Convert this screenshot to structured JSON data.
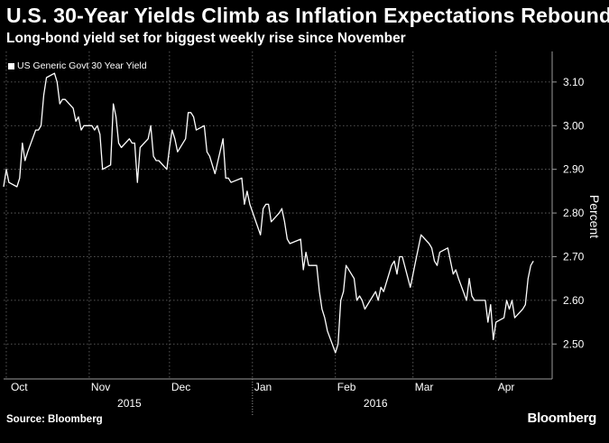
{
  "header": {
    "title": "U.S. 30-Year Yields Climb as Inflation Expectations Rebound",
    "subtitle": "Long-bond yield set for biggest weekly rise since November"
  },
  "footer": {
    "source": "Source: Bloomberg",
    "brand": "Bloomberg"
  },
  "chart_data": {
    "type": "line",
    "ylabel": "Percent",
    "ylim": [
      2.42,
      3.17
    ],
    "yticks": [
      2.5,
      2.6,
      2.7,
      2.8,
      2.9,
      3.0,
      3.1
    ],
    "ytick_labels": [
      "2.50",
      "2.60",
      "2.70",
      "2.80",
      "2.90",
      "3.00",
      "3.10"
    ],
    "y_axis_position": "right",
    "grid": true,
    "legend_position": "top-left",
    "xlim": [
      "2015-09-30",
      "2016-04-22"
    ],
    "month_ticks": [
      {
        "label": "Oct",
        "date": "2015-10-01"
      },
      {
        "label": "Nov",
        "date": "2015-11-01"
      },
      {
        "label": "Dec",
        "date": "2015-12-01"
      },
      {
        "label": "Jan",
        "date": "2016-01-01"
      },
      {
        "label": "Feb",
        "date": "2016-02-01"
      },
      {
        "label": "Mar",
        "date": "2016-03-01"
      },
      {
        "label": "Apr",
        "date": "2016-04-01"
      }
    ],
    "year_labels": [
      {
        "label": "2015",
        "date": "2015-11-16"
      },
      {
        "label": "2016",
        "date": "2016-02-16"
      }
    ],
    "year_separator": "2016-01-01",
    "series": [
      {
        "name": "US Generic Govt 30 Year Yield",
        "color": "#ffffff",
        "points": [
          [
            "2015-09-30",
            2.86
          ],
          [
            "2015-10-01",
            2.9
          ],
          [
            "2015-10-02",
            2.87
          ],
          [
            "2015-10-05",
            2.86
          ],
          [
            "2015-10-06",
            2.88
          ],
          [
            "2015-10-07",
            2.96
          ],
          [
            "2015-10-08",
            2.92
          ],
          [
            "2015-10-09",
            2.94
          ],
          [
            "2015-10-12",
            2.99
          ],
          [
            "2015-10-13",
            2.99
          ],
          [
            "2015-10-14",
            3.0
          ],
          [
            "2015-10-15",
            3.07
          ],
          [
            "2015-10-16",
            3.11
          ],
          [
            "2015-10-19",
            3.12
          ],
          [
            "2015-10-20",
            3.1
          ],
          [
            "2015-10-21",
            3.05
          ],
          [
            "2015-10-22",
            3.06
          ],
          [
            "2015-10-23",
            3.06
          ],
          [
            "2015-10-26",
            3.04
          ],
          [
            "2015-10-27",
            3.01
          ],
          [
            "2015-10-28",
            3.02
          ],
          [
            "2015-10-29",
            2.99
          ],
          [
            "2015-10-30",
            3.0
          ],
          [
            "2015-11-02",
            3.0
          ],
          [
            "2015-11-03",
            2.99
          ],
          [
            "2015-11-04",
            3.0
          ],
          [
            "2015-11-05",
            2.98
          ],
          [
            "2015-11-06",
            2.9
          ],
          [
            "2015-11-09",
            2.91
          ],
          [
            "2015-11-10",
            3.05
          ],
          [
            "2015-11-11",
            3.02
          ],
          [
            "2015-11-12",
            2.96
          ],
          [
            "2015-11-13",
            2.95
          ],
          [
            "2015-11-16",
            2.97
          ],
          [
            "2015-11-17",
            2.96
          ],
          [
            "2015-11-18",
            2.96
          ],
          [
            "2015-11-19",
            2.87
          ],
          [
            "2015-11-20",
            2.95
          ],
          [
            "2015-11-23",
            2.97
          ],
          [
            "2015-11-24",
            3.0
          ],
          [
            "2015-11-25",
            2.93
          ],
          [
            "2015-11-26",
            2.92
          ],
          [
            "2015-11-27",
            2.92
          ],
          [
            "2015-11-30",
            2.9
          ],
          [
            "2015-12-01",
            2.95
          ],
          [
            "2015-12-02",
            2.99
          ],
          [
            "2015-12-03",
            2.97
          ],
          [
            "2015-12-04",
            2.94
          ],
          [
            "2015-12-07",
            2.97
          ],
          [
            "2015-12-08",
            3.03
          ],
          [
            "2015-12-09",
            3.03
          ],
          [
            "2015-12-10",
            3.02
          ],
          [
            "2015-12-11",
            2.99
          ],
          [
            "2015-12-14",
            3.0
          ],
          [
            "2015-12-15",
            2.94
          ],
          [
            "2015-12-16",
            2.93
          ],
          [
            "2015-12-17",
            2.91
          ],
          [
            "2015-12-18",
            2.89
          ],
          [
            "2015-12-21",
            2.97
          ],
          [
            "2015-12-22",
            2.88
          ],
          [
            "2015-12-23",
            2.88
          ],
          [
            "2015-12-24",
            2.87
          ],
          [
            "2015-12-28",
            2.88
          ],
          [
            "2015-12-29",
            2.82
          ],
          [
            "2015-12-30",
            2.85
          ],
          [
            "2015-12-31",
            2.82
          ],
          [
            "2016-01-04",
            2.75
          ],
          [
            "2016-01-05",
            2.81
          ],
          [
            "2016-01-06",
            2.82
          ],
          [
            "2016-01-07",
            2.82
          ],
          [
            "2016-01-08",
            2.78
          ],
          [
            "2016-01-11",
            2.8
          ],
          [
            "2016-01-12",
            2.81
          ],
          [
            "2016-01-13",
            2.78
          ],
          [
            "2016-01-14",
            2.74
          ],
          [
            "2016-01-15",
            2.73
          ],
          [
            "2016-01-19",
            2.74
          ],
          [
            "2016-01-20",
            2.67
          ],
          [
            "2016-01-21",
            2.71
          ],
          [
            "2016-01-22",
            2.68
          ],
          [
            "2016-01-25",
            2.68
          ],
          [
            "2016-01-26",
            2.62
          ],
          [
            "2016-01-27",
            2.58
          ],
          [
            "2016-01-28",
            2.56
          ],
          [
            "2016-01-29",
            2.53
          ],
          [
            "2016-02-01",
            2.48
          ],
          [
            "2016-02-02",
            2.5
          ],
          [
            "2016-02-03",
            2.6
          ],
          [
            "2016-02-04",
            2.62
          ],
          [
            "2016-02-05",
            2.68
          ],
          [
            "2016-02-08",
            2.65
          ],
          [
            "2016-02-09",
            2.6
          ],
          [
            "2016-02-10",
            2.61
          ],
          [
            "2016-02-11",
            2.6
          ],
          [
            "2016-02-12",
            2.58
          ],
          [
            "2016-02-16",
            2.62
          ],
          [
            "2016-02-17",
            2.6
          ],
          [
            "2016-02-18",
            2.63
          ],
          [
            "2016-02-19",
            2.62
          ],
          [
            "2016-02-22",
            2.68
          ],
          [
            "2016-02-23",
            2.69
          ],
          [
            "2016-02-24",
            2.66
          ],
          [
            "2016-02-25",
            2.7
          ],
          [
            "2016-02-26",
            2.7
          ],
          [
            "2016-02-29",
            2.63
          ],
          [
            "2016-03-01",
            2.66
          ],
          [
            "2016-03-02",
            2.69
          ],
          [
            "2016-03-03",
            2.72
          ],
          [
            "2016-03-04",
            2.75
          ],
          [
            "2016-03-07",
            2.73
          ],
          [
            "2016-03-08",
            2.72
          ],
          [
            "2016-03-09",
            2.69
          ],
          [
            "2016-03-10",
            2.68
          ],
          [
            "2016-03-11",
            2.71
          ],
          [
            "2016-03-14",
            2.72
          ],
          [
            "2016-03-15",
            2.69
          ],
          [
            "2016-03-16",
            2.66
          ],
          [
            "2016-03-17",
            2.67
          ],
          [
            "2016-03-18",
            2.65
          ],
          [
            "2016-03-21",
            2.6
          ],
          [
            "2016-03-22",
            2.65
          ],
          [
            "2016-03-23",
            2.61
          ],
          [
            "2016-03-24",
            2.6
          ],
          [
            "2016-03-28",
            2.6
          ],
          [
            "2016-03-29",
            2.55
          ],
          [
            "2016-03-30",
            2.59
          ],
          [
            "2016-03-31",
            2.51
          ],
          [
            "2016-04-01",
            2.55
          ],
          [
            "2016-04-04",
            2.56
          ],
          [
            "2016-04-05",
            2.6
          ],
          [
            "2016-04-06",
            2.58
          ],
          [
            "2016-04-07",
            2.6
          ],
          [
            "2016-04-08",
            2.56
          ],
          [
            "2016-04-11",
            2.58
          ],
          [
            "2016-04-12",
            2.59
          ],
          [
            "2016-04-13",
            2.65
          ],
          [
            "2016-04-14",
            2.68
          ],
          [
            "2016-04-15",
            2.69
          ]
        ]
      }
    ]
  }
}
